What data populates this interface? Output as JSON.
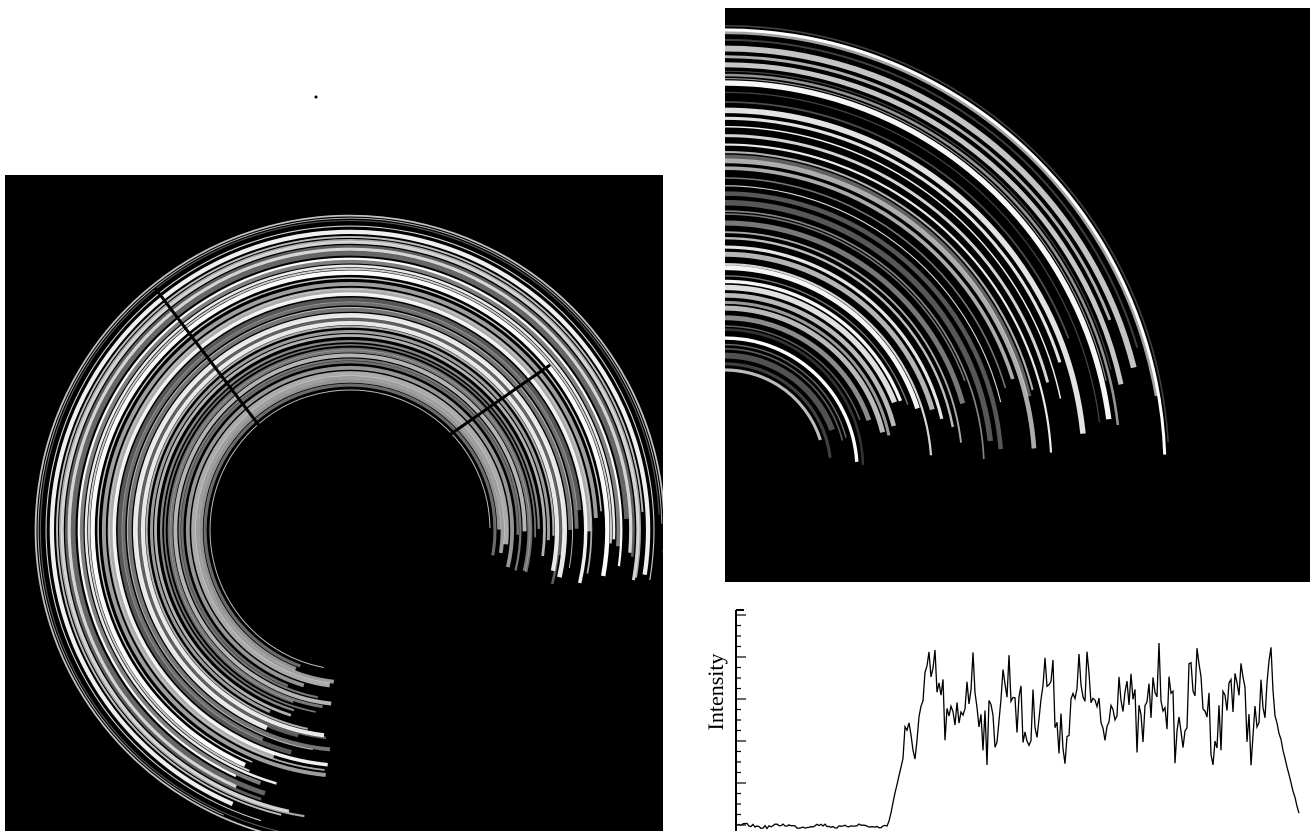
{
  "figure": {
    "intensity_axis_label": "Intensity"
  }
}
